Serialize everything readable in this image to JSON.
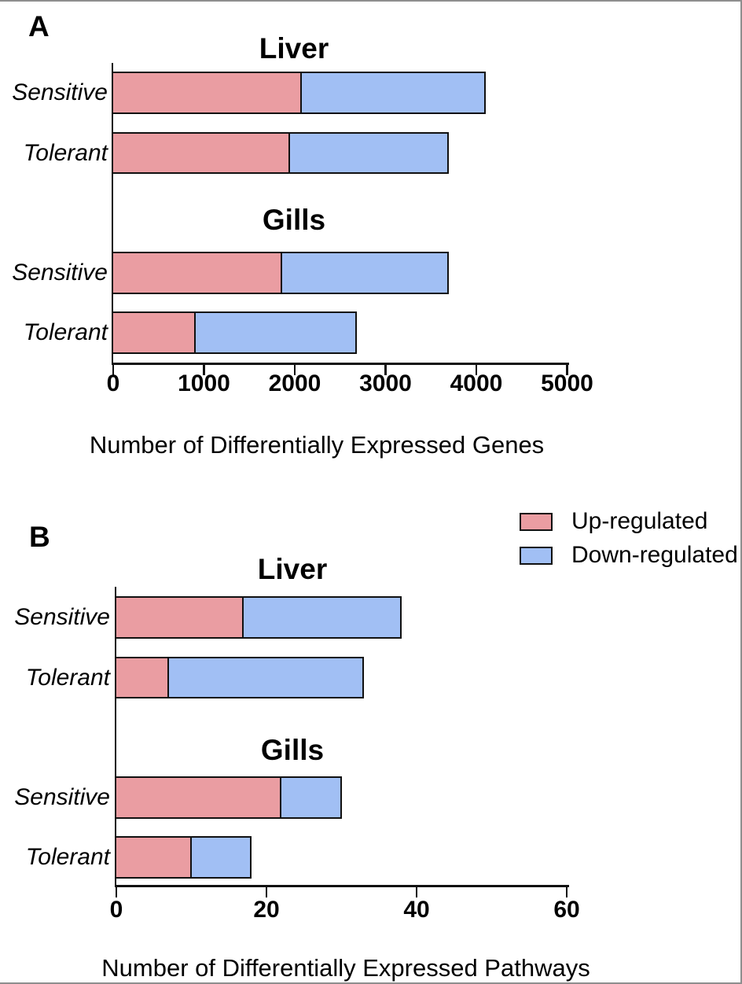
{
  "panels": {
    "a_label": "A",
    "b_label": "B"
  },
  "colors": {
    "up": "#EA9DA2",
    "down": "#A1BFF4",
    "axis": "#111111"
  },
  "legend": {
    "items": [
      {
        "label": "Up-regulated",
        "key": "up"
      },
      {
        "label": "Down-regulated",
        "key": "down"
      }
    ]
  },
  "chart_data": [
    {
      "panel": "A",
      "type": "bar",
      "orientation": "horizontal",
      "stacked": true,
      "xlabel": "Number of Differentially Expressed Genes",
      "xlim": [
        0,
        5000
      ],
      "xticks": [
        0,
        1000,
        2000,
        3000,
        4000,
        5000
      ],
      "categories": [
        "Liver Sensitive",
        "Liver Tolerant",
        "Gills Sensitive",
        "Gills Tolerant"
      ],
      "series": [
        {
          "name": "Up-regulated",
          "values": [
            2080,
            1950,
            1860,
            910
          ]
        },
        {
          "name": "Down-regulated",
          "values": [
            2020,
            1750,
            1840,
            1770
          ]
        }
      ],
      "groups": [
        {
          "title": "Liver",
          "rows": [
            {
              "label": "Sensitive",
              "up": 2080,
              "down": 2020
            },
            {
              "label": "Tolerant",
              "up": 1950,
              "down": 1750
            }
          ]
        },
        {
          "title": "Gills",
          "rows": [
            {
              "label": "Sensitive",
              "up": 1860,
              "down": 1840
            },
            {
              "label": "Tolerant",
              "up": 910,
              "down": 1770
            }
          ]
        }
      ]
    },
    {
      "panel": "B",
      "type": "bar",
      "orientation": "horizontal",
      "stacked": true,
      "xlabel": "Number of Differentially Expressed Pathways",
      "xlim": [
        0,
        60
      ],
      "xticks": [
        0,
        20,
        40,
        60
      ],
      "categories": [
        "Liver Sensitive",
        "Liver Tolerant",
        "Gills Sensitive",
        "Gills Tolerant"
      ],
      "series": [
        {
          "name": "Up-regulated",
          "values": [
            17,
            7,
            22,
            10
          ]
        },
        {
          "name": "Down-regulated",
          "values": [
            21,
            26,
            8,
            8
          ]
        }
      ],
      "groups": [
        {
          "title": "Liver",
          "rows": [
            {
              "label": "Sensitive",
              "up": 17,
              "down": 21
            },
            {
              "label": "Tolerant",
              "up": 7,
              "down": 26
            }
          ]
        },
        {
          "title": "Gills",
          "rows": [
            {
              "label": "Sensitive",
              "up": 22,
              "down": 8
            },
            {
              "label": "Tolerant",
              "up": 10,
              "down": 8
            }
          ]
        }
      ]
    }
  ]
}
